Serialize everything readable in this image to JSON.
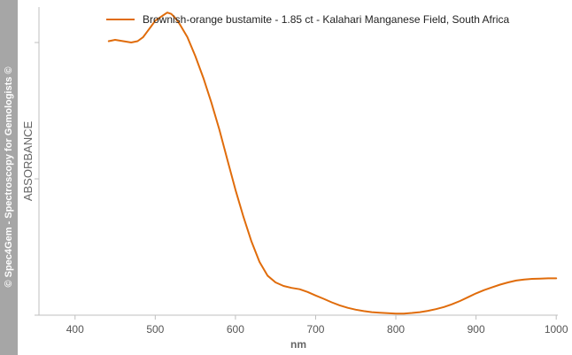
{
  "sidebar": {
    "text": "© Spec4Gem - Spectroscopy for Gemologists ©"
  },
  "colors": {
    "series": "#e06c0b",
    "axis": "#bfbfbf",
    "sidebar": "#a6a6a6"
  },
  "chart_data": {
    "type": "line",
    "title": "",
    "xlabel": "nm",
    "ylabel": "ABSORBANCE",
    "xlim": [
      355,
      1002
    ],
    "ylim": [
      0,
      1.13
    ],
    "x_ticks": [
      400,
      500,
      600,
      700,
      800,
      900,
      1000
    ],
    "y_ticks": [
      0,
      0.5,
      1.0
    ],
    "grid": false,
    "legend_position": "top-right",
    "series": [
      {
        "name": "Brownish-orange bustamite - 1.85 ct - Kalahari Manganese Field, South Africa",
        "x": [
          442,
          450,
          460,
          470,
          478,
          485,
          490,
          495,
          500,
          505,
          510,
          515,
          520,
          525,
          530,
          540,
          550,
          560,
          570,
          580,
          590,
          600,
          610,
          620,
          630,
          640,
          650,
          660,
          670,
          680,
          690,
          700,
          710,
          720,
          730,
          740,
          750,
          760,
          770,
          780,
          790,
          800,
          810,
          820,
          830,
          840,
          850,
          860,
          870,
          880,
          890,
          900,
          910,
          920,
          930,
          940,
          950,
          960,
          970,
          980,
          990,
          1000
        ],
        "y": [
          1.005,
          1.01,
          1.005,
          1.0,
          1.005,
          1.02,
          1.04,
          1.06,
          1.08,
          1.09,
          1.1,
          1.11,
          1.105,
          1.09,
          1.07,
          1.02,
          0.95,
          0.87,
          0.78,
          0.68,
          0.57,
          0.46,
          0.36,
          0.27,
          0.195,
          0.145,
          0.12,
          0.107,
          0.1,
          0.095,
          0.085,
          0.072,
          0.06,
          0.047,
          0.036,
          0.027,
          0.02,
          0.015,
          0.011,
          0.009,
          0.007,
          0.006,
          0.006,
          0.008,
          0.011,
          0.016,
          0.022,
          0.03,
          0.04,
          0.052,
          0.066,
          0.08,
          0.092,
          0.102,
          0.112,
          0.12,
          0.127,
          0.131,
          0.133,
          0.134,
          0.135,
          0.135
        ]
      }
    ]
  }
}
